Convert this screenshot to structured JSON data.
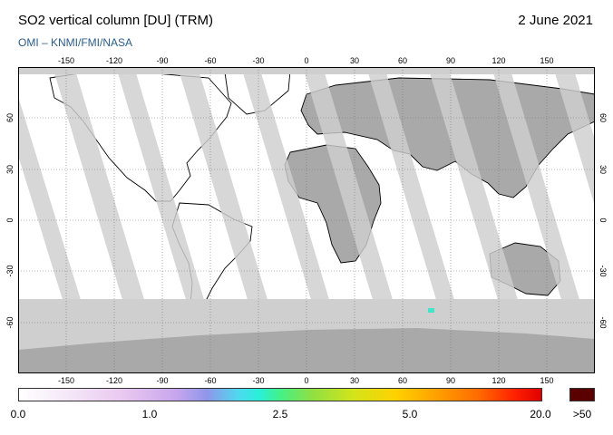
{
  "header": {
    "title": "SO2 vertical column [DU] (TRM)",
    "date": "2 June 2021",
    "credit": "OMI  –  KNMI/FMI/NASA"
  },
  "map": {
    "projection": "equirectangular",
    "lon_range": [
      -180,
      180
    ],
    "lat_range": [
      -90,
      90
    ],
    "lon_ticks": [
      "-150",
      "-120",
      "-90",
      "-60",
      "-30",
      "0",
      "30",
      "60",
      "90",
      "120",
      "150"
    ],
    "lat_ticks": [
      "60",
      "30",
      "0",
      "-30",
      "-60"
    ],
    "colors": {
      "no_data": "#cfcfcf",
      "land_masked": "#a9a9a9",
      "ocean_valid": "#ffffff",
      "land_outline": "#000000",
      "grid": "#777777"
    }
  },
  "colorbar": {
    "labels": [
      "0.0",
      "1.0",
      "2.5",
      "5.0",
      "20.0"
    ],
    "overflow_label": ">50",
    "overflow_color": "#5a0000"
  }
}
